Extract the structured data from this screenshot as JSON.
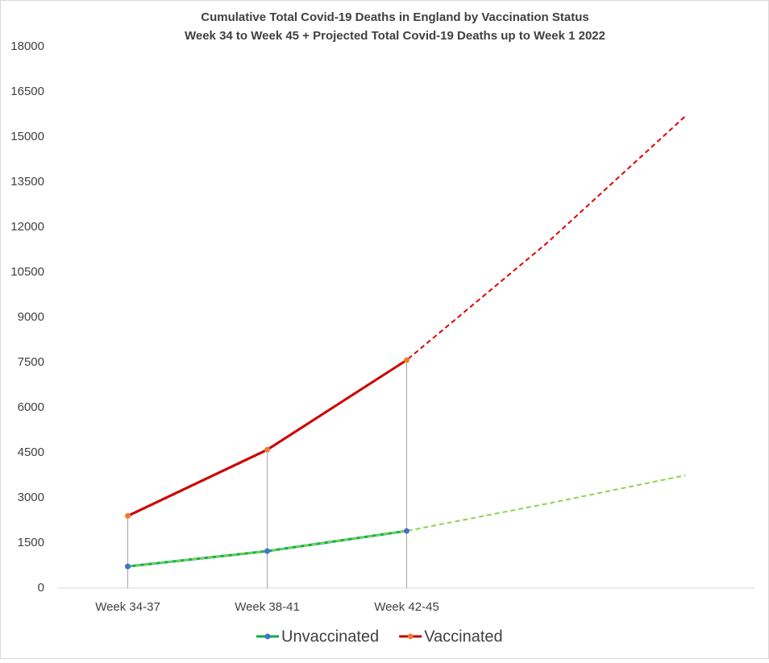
{
  "chart_data": {
    "type": "line",
    "title": [
      "Cumulative Total Covid-19 Deaths in England by Vaccination Status",
      "Week 34 to Week 45 + Projected Total Covid-19 Deaths up to Week 1 2022"
    ],
    "categories": [
      "Week 34-37",
      "Week 38-41",
      "Week 42-45",
      null,
      null
    ],
    "series": [
      {
        "name": "Unvaccinated",
        "color": "#00b050",
        "marker_color": "#4472c4",
        "trend_color": "#92d050",
        "values": [
          720,
          1230,
          1900,
          null,
          null
        ],
        "trend_values": [
          720,
          1230,
          1900,
          2800,
          3750
        ]
      },
      {
        "name": "Vaccinated",
        "color": "#c00000",
        "marker_color": "#ed7d31",
        "trend_color": "#e00000",
        "values": [
          2400,
          4600,
          7580,
          null,
          null
        ],
        "trend_values": [
          2380,
          4580,
          7580,
          11450,
          15700
        ]
      }
    ],
    "ylim": [
      0,
      18000
    ],
    "yticks": [
      0,
      1500,
      3000,
      4500,
      6000,
      7500,
      9000,
      10500,
      12000,
      13500,
      15000,
      16500,
      18000
    ],
    "grid": false,
    "legend": "bottom"
  }
}
